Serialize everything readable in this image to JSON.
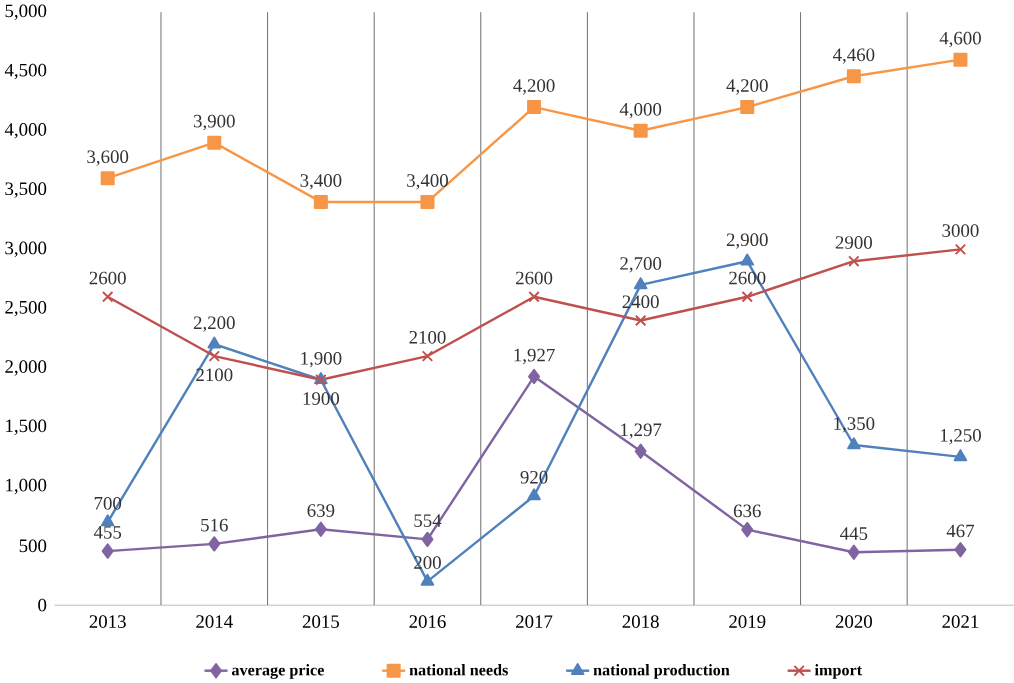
{
  "chart_data": {
    "type": "line",
    "categories": [
      "2013",
      "2014",
      "2015",
      "2016",
      "2017",
      "2018",
      "2019",
      "2020",
      "2021"
    ],
    "ylim": [
      0,
      5000
    ],
    "yticks": [
      0,
      500,
      {
        "value": 1000,
        "label": "1,000"
      },
      {
        "value": 1500,
        "label": "1,500"
      },
      {
        "value": 2000,
        "label": "2,000"
      },
      {
        "value": 2500,
        "label": "2,500"
      },
      {
        "value": 3000,
        "label": "3,000"
      },
      {
        "value": 3500,
        "label": "3,500"
      },
      {
        "value": 4000,
        "label": "4,000"
      },
      {
        "value": 4500,
        "label": "4,500"
      },
      {
        "value": 5000,
        "label": "5,000"
      }
    ],
    "grid": "x",
    "legend": "bottom",
    "line_style": "solid",
    "series": [
      {
        "name": "average price",
        "color": "#8064a2",
        "marker": "diamond",
        "values": [
          455,
          516,
          639,
          554,
          1927,
          1297,
          636,
          445,
          467
        ],
        "value_labels": [
          "455",
          "516",
          "639",
          "554",
          "1,927",
          "1,297",
          "636",
          "445",
          "467"
        ]
      },
      {
        "name": "national needs",
        "color": "#f79646",
        "marker": "square",
        "values": [
          3600,
          3900,
          3400,
          3400,
          4200,
          4000,
          4200,
          4460,
          4600
        ],
        "value_labels": [
          "3,600",
          "3,900",
          "3,400",
          "3,400",
          "4,200",
          "4,000",
          "4,200",
          "4,460",
          "4,600"
        ]
      },
      {
        "name": "national production",
        "color": "#4f81bd",
        "marker": "triangle",
        "values": [
          700,
          2200,
          1900,
          200,
          920,
          2700,
          2900,
          1350,
          1250
        ],
        "value_labels": [
          "700",
          "2,200",
          "1,900",
          "200",
          "920",
          "2,700",
          "2,900",
          "1,350",
          "1,250"
        ]
      },
      {
        "name": "import",
        "color": "#c0504d",
        "marker": "cross",
        "values": [
          2600,
          2100,
          1900,
          2100,
          2600,
          2400,
          2600,
          2900,
          3000
        ],
        "value_labels": [
          "2600",
          "2100",
          "1900",
          "2100",
          "2600",
          "2400",
          "2600",
          "2900",
          "3000"
        ]
      }
    ]
  }
}
